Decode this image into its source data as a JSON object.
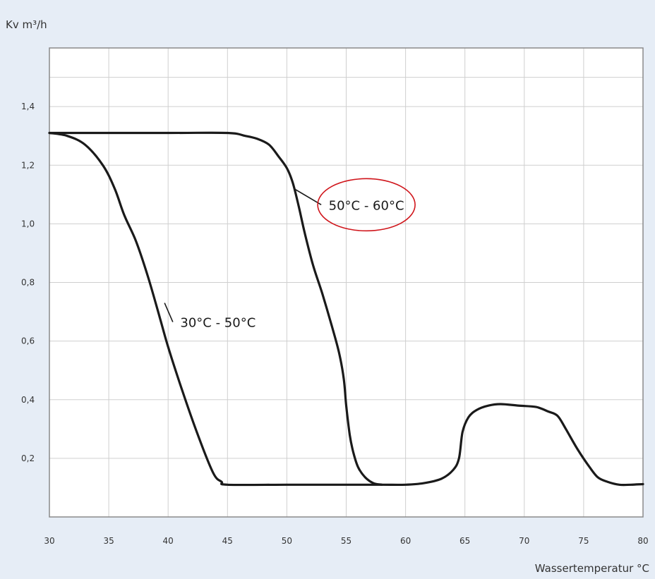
{
  "chart_data": {
    "type": "line",
    "ylabel": "Kv m³/h",
    "xlabel": "Wassertemperatur °C",
    "xlim": [
      30,
      80
    ],
    "ylim": [
      0,
      1.6
    ],
    "x_ticks": [
      30,
      35,
      40,
      45,
      50,
      55,
      60,
      65,
      70,
      75,
      80
    ],
    "x_tick_labels": [
      "30",
      "35",
      "40",
      "45",
      "50",
      "55",
      "60",
      "65",
      "70",
      "75",
      "80"
    ],
    "y_ticks": [
      0.2,
      0.4,
      0.6,
      0.8,
      1.0,
      1.2,
      1.4
    ],
    "y_tick_labels": [
      "0,2",
      "0,4",
      "0,6",
      "0,8",
      "1,0",
      "1,2",
      "1,4"
    ],
    "grid": true,
    "series": [
      {
        "name": "30°C - 50°C",
        "x": [
          30,
          31.5,
          33,
          34.5,
          35.5,
          36.3,
          37.3,
          38.3,
          39.3,
          40,
          41.2,
          42.5,
          43.8,
          44.5,
          45,
          50,
          55,
          58,
          60,
          61.5,
          63,
          64,
          64.5,
          64.8,
          65.3,
          66,
          67,
          68,
          69.5,
          71,
          72,
          72.8,
          73.5,
          74.5,
          75.5,
          76.2,
          77,
          78,
          79,
          80
        ],
        "y": [
          1.31,
          1.3,
          1.27,
          1.2,
          1.12,
          1.03,
          0.94,
          0.82,
          0.68,
          0.58,
          0.43,
          0.28,
          0.15,
          0.12,
          0.11,
          0.11,
          0.11,
          0.11,
          0.11,
          0.115,
          0.13,
          0.16,
          0.2,
          0.29,
          0.34,
          0.365,
          0.38,
          0.385,
          0.38,
          0.375,
          0.36,
          0.345,
          0.3,
          0.23,
          0.17,
          0.135,
          0.12,
          0.11,
          0.11,
          0.112
        ]
      },
      {
        "name": "50°C - 60°C",
        "x": [
          30,
          40,
          45,
          46.5,
          47.5,
          48.5,
          49.3,
          50,
          50.5,
          51,
          51.5,
          52.2,
          53,
          53.8,
          54.4,
          54.8,
          55,
          55.3,
          55.6,
          56,
          56.6,
          57.3,
          58
        ],
        "y": [
          1.31,
          1.31,
          1.31,
          1.3,
          1.29,
          1.27,
          1.23,
          1.19,
          1.14,
          1.06,
          0.97,
          0.86,
          0.76,
          0.65,
          0.56,
          0.47,
          0.38,
          0.28,
          0.22,
          0.17,
          0.135,
          0.115,
          0.11
        ]
      }
    ],
    "annotations": [
      {
        "text": "50°C - 60°C",
        "target_x": 50.6,
        "target_y": 1.12,
        "label_x": 56.7,
        "label_y": 1.065,
        "highlight": true,
        "highlight_color": "#d0161c"
      },
      {
        "text": "30°C - 50°C",
        "target_x": 39.7,
        "target_y": 0.73,
        "label_x": 44.2,
        "label_y": 0.665,
        "highlight": false
      }
    ],
    "colors": {
      "background": "#e6edf6",
      "plot_background": "#ffffff",
      "grid": "#cfcfcf",
      "frame": "#8a8a8a",
      "line": "#1a1a1a"
    }
  }
}
